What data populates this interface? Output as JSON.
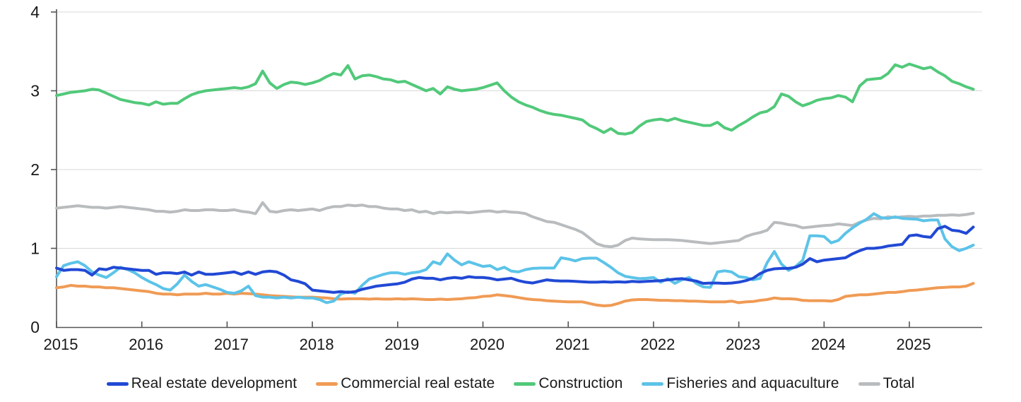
{
  "chart_data": {
    "type": "line",
    "title": "",
    "x_axis": {
      "start_year": 2015,
      "points_per_year": 12,
      "tick_years": [
        2015,
        2016,
        2017,
        2018,
        2019,
        2020,
        2021,
        2022,
        2023,
        2024,
        2025
      ],
      "tick_labels": [
        "2015",
        "2016",
        "2017",
        "2018",
        "2019",
        "2020",
        "2021",
        "2022",
        "2023",
        "2024",
        "2025"
      ]
    },
    "y_axis": {
      "ylim": [
        0,
        4
      ],
      "ticks": [
        0,
        1,
        2,
        3,
        4
      ],
      "tick_labels": [
        "0",
        "1",
        "2",
        "3",
        "4"
      ]
    },
    "grid": "horizontal",
    "legend_position": "bottom",
    "draw_order": [
      4,
      1,
      2,
      3,
      0
    ],
    "series": [
      {
        "name": "Real estate development",
        "color": "#2149d5",
        "values": [
          0.75,
          0.72,
          0.73,
          0.73,
          0.72,
          0.66,
          0.74,
          0.73,
          0.76,
          0.75,
          0.74,
          0.73,
          0.72,
          0.72,
          0.67,
          0.69,
          0.69,
          0.68,
          0.7,
          0.66,
          0.7,
          0.67,
          0.67,
          0.68,
          0.69,
          0.7,
          0.67,
          0.7,
          0.67,
          0.7,
          0.71,
          0.7,
          0.66,
          0.6,
          0.58,
          0.55,
          0.47,
          0.46,
          0.45,
          0.44,
          0.45,
          0.44,
          0.45,
          0.48,
          0.5,
          0.52,
          0.53,
          0.54,
          0.55,
          0.57,
          0.61,
          0.63,
          0.62,
          0.62,
          0.6,
          0.62,
          0.63,
          0.62,
          0.64,
          0.63,
          0.63,
          0.62,
          0.6,
          0.61,
          0.62,
          0.59,
          0.57,
          0.56,
          0.58,
          0.6,
          0.59,
          0.585,
          0.585,
          0.58,
          0.575,
          0.57,
          0.57,
          0.575,
          0.57,
          0.575,
          0.57,
          0.58,
          0.575,
          0.58,
          0.585,
          0.59,
          0.6,
          0.61,
          0.615,
          0.6,
          0.585,
          0.555,
          0.56,
          0.56,
          0.555,
          0.56,
          0.57,
          0.59,
          0.62,
          0.68,
          0.72,
          0.74,
          0.745,
          0.745,
          0.76,
          0.8,
          0.87,
          0.83,
          0.85,
          0.86,
          0.87,
          0.88,
          0.93,
          0.97,
          1.0,
          1.0,
          1.01,
          1.03,
          1.04,
          1.05,
          1.16,
          1.17,
          1.15,
          1.14,
          1.25,
          1.28,
          1.23,
          1.22,
          1.19,
          1.27
        ]
      },
      {
        "name": "Commercial real estate",
        "color": "#f09b55",
        "values": [
          0.5,
          0.51,
          0.53,
          0.52,
          0.52,
          0.51,
          0.51,
          0.5,
          0.5,
          0.49,
          0.48,
          0.47,
          0.46,
          0.45,
          0.43,
          0.42,
          0.42,
          0.41,
          0.42,
          0.42,
          0.42,
          0.43,
          0.42,
          0.42,
          0.43,
          0.42,
          0.43,
          0.425,
          0.42,
          0.41,
          0.4,
          0.395,
          0.39,
          0.385,
          0.38,
          0.38,
          0.38,
          0.375,
          0.37,
          0.36,
          0.355,
          0.36,
          0.36,
          0.36,
          0.355,
          0.36,
          0.355,
          0.355,
          0.36,
          0.355,
          0.36,
          0.355,
          0.35,
          0.35,
          0.355,
          0.35,
          0.355,
          0.36,
          0.37,
          0.375,
          0.39,
          0.395,
          0.41,
          0.4,
          0.39,
          0.375,
          0.36,
          0.35,
          0.345,
          0.335,
          0.33,
          0.325,
          0.32,
          0.32,
          0.32,
          0.3,
          0.28,
          0.27,
          0.275,
          0.3,
          0.33,
          0.345,
          0.35,
          0.35,
          0.345,
          0.34,
          0.34,
          0.335,
          0.335,
          0.33,
          0.33,
          0.325,
          0.32,
          0.32,
          0.32,
          0.33,
          0.31,
          0.32,
          0.325,
          0.34,
          0.35,
          0.37,
          0.36,
          0.36,
          0.355,
          0.34,
          0.335,
          0.335,
          0.335,
          0.33,
          0.35,
          0.39,
          0.4,
          0.41,
          0.41,
          0.42,
          0.43,
          0.44,
          0.44,
          0.45,
          0.465,
          0.47,
          0.48,
          0.49,
          0.5,
          0.505,
          0.51,
          0.51,
          0.52,
          0.555
        ]
      },
      {
        "name": "Construction",
        "color": "#51c97a",
        "values": [
          2.94,
          2.96,
          2.98,
          2.99,
          3.0,
          3.02,
          3.01,
          2.97,
          2.93,
          2.89,
          2.87,
          2.85,
          2.84,
          2.82,
          2.86,
          2.83,
          2.84,
          2.84,
          2.9,
          2.95,
          2.98,
          3.0,
          3.01,
          3.02,
          3.03,
          3.04,
          3.03,
          3.05,
          3.09,
          3.25,
          3.1,
          3.03,
          3.08,
          3.11,
          3.1,
          3.08,
          3.1,
          3.13,
          3.18,
          3.22,
          3.2,
          3.32,
          3.15,
          3.19,
          3.2,
          3.18,
          3.15,
          3.14,
          3.11,
          3.12,
          3.08,
          3.04,
          3.0,
          3.03,
          2.96,
          3.05,
          3.02,
          3.0,
          3.01,
          3.02,
          3.04,
          3.07,
          3.1,
          3.0,
          2.92,
          2.86,
          2.82,
          2.79,
          2.75,
          2.72,
          2.7,
          2.69,
          2.67,
          2.65,
          2.63,
          2.56,
          2.52,
          2.47,
          2.52,
          2.46,
          2.45,
          2.47,
          2.55,
          2.61,
          2.63,
          2.64,
          2.62,
          2.65,
          2.62,
          2.6,
          2.58,
          2.56,
          2.56,
          2.6,
          2.53,
          2.5,
          2.56,
          2.61,
          2.67,
          2.72,
          2.74,
          2.8,
          2.96,
          2.93,
          2.86,
          2.81,
          2.84,
          2.88,
          2.9,
          2.91,
          2.94,
          2.92,
          2.86,
          3.06,
          3.14,
          3.15,
          3.16,
          3.22,
          3.33,
          3.3,
          3.34,
          3.31,
          3.28,
          3.3,
          3.24,
          3.19,
          3.12,
          3.09,
          3.05,
          3.02
        ]
      },
      {
        "name": "Fisheries and aquaculture",
        "color": "#5cc3e8",
        "values": [
          0.64,
          0.78,
          0.81,
          0.83,
          0.78,
          0.7,
          0.66,
          0.63,
          0.69,
          0.76,
          0.73,
          0.69,
          0.63,
          0.58,
          0.54,
          0.49,
          0.47,
          0.55,
          0.66,
          0.58,
          0.52,
          0.54,
          0.51,
          0.48,
          0.44,
          0.43,
          0.46,
          0.52,
          0.4,
          0.38,
          0.38,
          0.37,
          0.38,
          0.37,
          0.38,
          0.37,
          0.37,
          0.35,
          0.31,
          0.33,
          0.42,
          0.45,
          0.43,
          0.53,
          0.61,
          0.64,
          0.67,
          0.69,
          0.69,
          0.67,
          0.69,
          0.7,
          0.73,
          0.83,
          0.8,
          0.93,
          0.85,
          0.79,
          0.83,
          0.8,
          0.77,
          0.78,
          0.73,
          0.76,
          0.71,
          0.7,
          0.73,
          0.745,
          0.75,
          0.75,
          0.75,
          0.88,
          0.865,
          0.84,
          0.87,
          0.875,
          0.875,
          0.82,
          0.76,
          0.69,
          0.645,
          0.63,
          0.615,
          0.62,
          0.63,
          0.57,
          0.615,
          0.555,
          0.6,
          0.63,
          0.555,
          0.51,
          0.505,
          0.7,
          0.715,
          0.7,
          0.64,
          0.63,
          0.6,
          0.62,
          0.82,
          0.96,
          0.8,
          0.72,
          0.77,
          0.85,
          1.16,
          1.16,
          1.15,
          1.07,
          1.1,
          1.19,
          1.26,
          1.32,
          1.37,
          1.44,
          1.39,
          1.38,
          1.4,
          1.38,
          1.375,
          1.37,
          1.35,
          1.36,
          1.36,
          1.12,
          1.02,
          0.97,
          1.0,
          1.04
        ]
      },
      {
        "name": "Total",
        "color": "#b9bcbe",
        "values": [
          1.51,
          1.52,
          1.53,
          1.54,
          1.53,
          1.52,
          1.52,
          1.51,
          1.52,
          1.53,
          1.52,
          1.51,
          1.5,
          1.49,
          1.47,
          1.47,
          1.46,
          1.47,
          1.49,
          1.48,
          1.48,
          1.49,
          1.49,
          1.48,
          1.48,
          1.49,
          1.47,
          1.46,
          1.44,
          1.58,
          1.47,
          1.46,
          1.48,
          1.49,
          1.48,
          1.49,
          1.5,
          1.48,
          1.51,
          1.53,
          1.53,
          1.55,
          1.54,
          1.55,
          1.53,
          1.53,
          1.51,
          1.5,
          1.5,
          1.48,
          1.49,
          1.46,
          1.47,
          1.44,
          1.46,
          1.45,
          1.46,
          1.46,
          1.45,
          1.46,
          1.47,
          1.475,
          1.46,
          1.47,
          1.46,
          1.455,
          1.44,
          1.4,
          1.37,
          1.34,
          1.33,
          1.3,
          1.27,
          1.24,
          1.2,
          1.13,
          1.06,
          1.03,
          1.02,
          1.04,
          1.1,
          1.13,
          1.12,
          1.115,
          1.11,
          1.11,
          1.11,
          1.105,
          1.1,
          1.09,
          1.08,
          1.07,
          1.06,
          1.07,
          1.08,
          1.09,
          1.1,
          1.15,
          1.18,
          1.2,
          1.23,
          1.33,
          1.32,
          1.3,
          1.29,
          1.26,
          1.27,
          1.28,
          1.29,
          1.295,
          1.31,
          1.3,
          1.29,
          1.33,
          1.36,
          1.38,
          1.375,
          1.4,
          1.39,
          1.4,
          1.405,
          1.4,
          1.41,
          1.41,
          1.42,
          1.42,
          1.425,
          1.42,
          1.43,
          1.445
        ]
      }
    ]
  },
  "style": {
    "grid_color": "#d8d8d8",
    "axis_color": "#555555",
    "tick_label_color": "#191919",
    "background": "#ffffff",
    "line_width": 4
  }
}
